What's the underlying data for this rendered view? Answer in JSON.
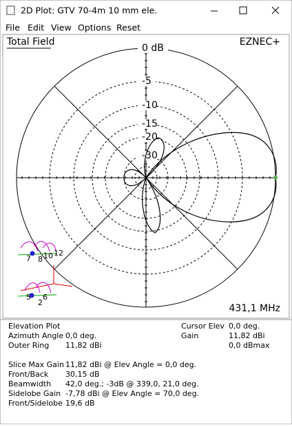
{
  "window": {
    "title": "2D Plot: GTV 70-4m 10 mm ele.",
    "menu": [
      "File",
      "Edit",
      "View",
      "Options",
      "Reset"
    ]
  },
  "plot": {
    "label": "Total Field",
    "brand": "EZNEC+",
    "rings": [
      "0 dB",
      "-5",
      "-10",
      "-15",
      "-20",
      "-30"
    ],
    "frequency": "431,1 MHz",
    "icon_top_labels": [
      "7",
      "8",
      "10",
      "12"
    ],
    "icon_bottom_labels": [
      "5",
      "6",
      "2"
    ]
  },
  "info": {
    "heading": "Elevation Plot",
    "left": [
      [
        "Azimuth Angle",
        "0,0 deg."
      ],
      [
        "Outer Ring",
        "11,82 dBi"
      ]
    ],
    "right": [
      [
        "Cursor Elev",
        "0,0 deg."
      ],
      [
        "Gain",
        "11,82 dBi"
      ],
      [
        "0,0 dBmax"
      ]
    ],
    "summary": [
      [
        "Slice Max Gain",
        "11,82 dBi @ Elev Angle = 0,0 deg."
      ],
      [
        "Front/Back",
        "30,15 dB"
      ],
      [
        "Beamwidth",
        "42,0 deg.; -3dB @ 339,0, 21,0 deg."
      ],
      [
        "Sidelobe Gain",
        "-7,78 dBi @ Elev Angle = 70,0 deg."
      ],
      [
        "Front/Sidelobe",
        "19,6 dB"
      ]
    ]
  }
}
